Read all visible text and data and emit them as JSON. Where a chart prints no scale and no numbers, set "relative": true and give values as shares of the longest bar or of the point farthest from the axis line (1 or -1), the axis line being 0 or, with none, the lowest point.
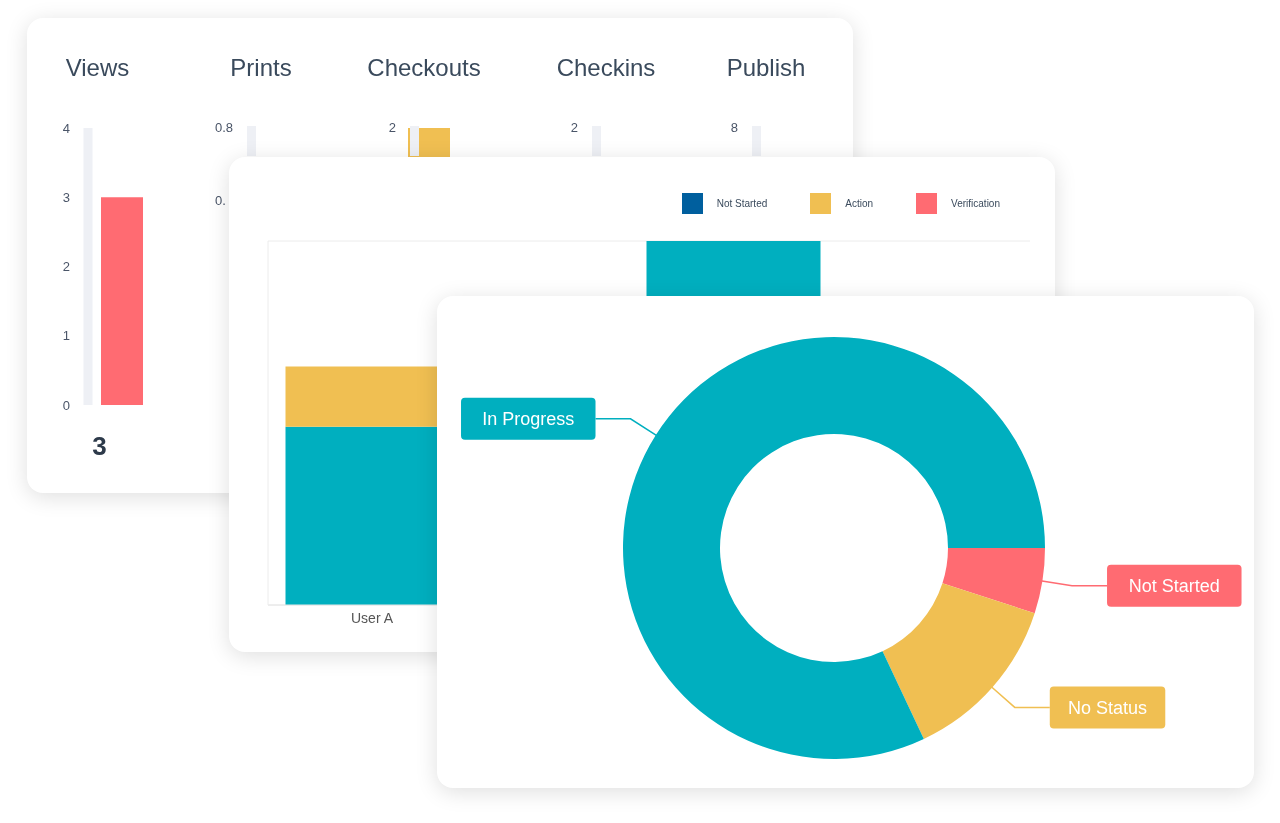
{
  "chart_data": [
    {
      "type": "bar",
      "title": "Views",
      "categories": [
        null
      ],
      "values": [
        3
      ],
      "color": "#ff6b72",
      "ylim": [
        0,
        4
      ],
      "yticks": [
        0,
        1,
        2,
        3,
        4
      ],
      "value_labels": [
        "3"
      ]
    },
    {
      "type": "other",
      "title": "Prints",
      "annotations": [
        "0.8",
        "0."
      ]
    },
    {
      "type": "bar",
      "relative": true,
      "title": "Checkouts",
      "categories": [
        null
      ],
      "values": [
        1
      ],
      "color": "#f0bf52",
      "annotations": [
        "2"
      ]
    },
    {
      "type": "other",
      "title": "Checkins",
      "annotations": [
        "2"
      ]
    },
    {
      "type": "other",
      "title": "Publish",
      "annotations": [
        "8"
      ]
    },
    {
      "type": "bar",
      "stacked": true,
      "relative": true,
      "categories": [
        "User A",
        null
      ],
      "legend": "top right",
      "grid": "y",
      "series": [
        {
          "color": "#00afbf",
          "values": [
            0.49,
            1
          ]
        },
        {
          "name": "Not Started",
          "color": "#005f9e",
          "values": [
            null,
            null
          ]
        },
        {
          "name": "Action",
          "color": "#f0bf52",
          "values": [
            0.165,
            null
          ]
        },
        {
          "name": "Verification",
          "color": "#ff6b72",
          "values": [
            null,
            null
          ]
        }
      ]
    },
    {
      "type": "donut",
      "categories": [
        "Not Started",
        "No Status",
        "In Progress"
      ],
      "values": [
        5,
        13,
        82
      ],
      "colors": [
        "#ff6b72",
        "#f0bf52",
        "#00afbf"
      ]
    }
  ]
}
